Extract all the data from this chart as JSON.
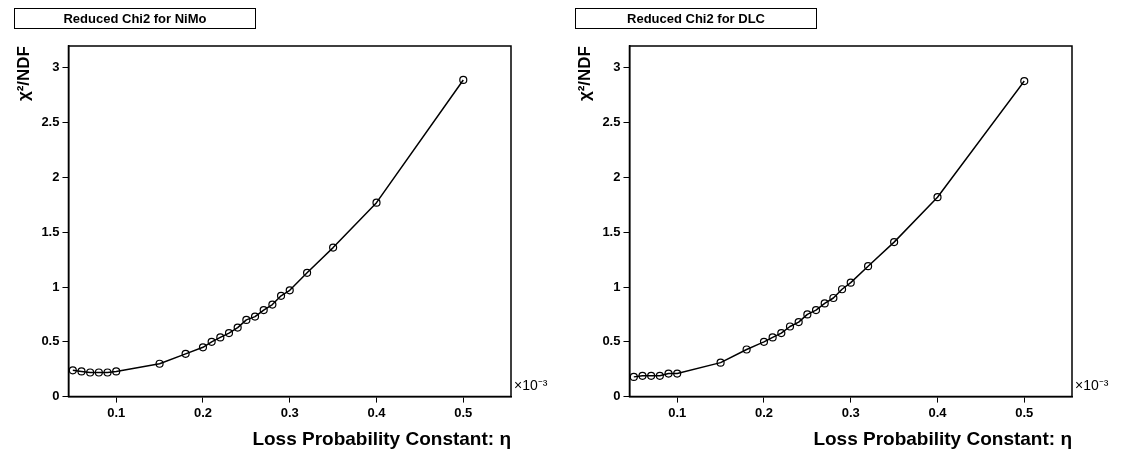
{
  "chart_data": [
    {
      "type": "line",
      "title": "Reduced Chi2 for NiMo",
      "xlabel": "Loss Probability Constant: η",
      "ylabel": "χ²/NDF",
      "annotations": [
        "×10⁻³"
      ],
      "x": [
        0.05,
        0.06,
        0.07,
        0.08,
        0.09,
        0.1,
        0.15,
        0.18,
        0.2,
        0.21,
        0.22,
        0.23,
        0.24,
        0.25,
        0.26,
        0.27,
        0.28,
        0.29,
        0.3,
        0.32,
        0.35,
        0.4,
        0.5
      ],
      "series": [
        {
          "color": "#000000",
          "values": [
            0.24,
            0.23,
            0.22,
            0.22,
            0.22,
            0.23,
            0.3,
            0.39,
            0.45,
            0.5,
            0.54,
            0.58,
            0.63,
            0.7,
            0.73,
            0.79,
            0.84,
            0.92,
            0.97,
            1.13,
            1.36,
            1.77,
            2.89
          ]
        }
      ],
      "xlim": [
        0.045,
        0.555
      ],
      "ylim": [
        0,
        3.2
      ],
      "xticks": [
        0.1,
        0.2,
        0.3,
        0.4,
        0.5
      ],
      "yticks": [
        0,
        0.5,
        1,
        1.5,
        2,
        2.5,
        3
      ],
      "marker": "circle",
      "line_style": "solid"
    },
    {
      "type": "line",
      "title": "Reduced Chi2 for DLC",
      "xlabel": "Loss Probability Constant: η",
      "ylabel": "χ²/NDF",
      "annotations": [
        "×10⁻³"
      ],
      "x": [
        0.05,
        0.06,
        0.07,
        0.08,
        0.09,
        0.1,
        0.15,
        0.18,
        0.2,
        0.21,
        0.22,
        0.23,
        0.24,
        0.25,
        0.26,
        0.27,
        0.28,
        0.29,
        0.3,
        0.32,
        0.35,
        0.4,
        0.5
      ],
      "series": [
        {
          "color": "#000000",
          "values": [
            0.18,
            0.19,
            0.19,
            0.19,
            0.21,
            0.21,
            0.31,
            0.43,
            0.5,
            0.54,
            0.58,
            0.64,
            0.68,
            0.75,
            0.79,
            0.85,
            0.9,
            0.98,
            1.04,
            1.19,
            1.41,
            1.82,
            2.88
          ]
        }
      ],
      "xlim": [
        0.045,
        0.555
      ],
      "ylim": [
        0,
        3.2
      ],
      "xticks": [
        0.1,
        0.2,
        0.3,
        0.4,
        0.5
      ],
      "yticks": [
        0,
        0.5,
        1,
        1.5,
        2,
        2.5,
        3
      ],
      "marker": "circle",
      "line_style": "solid"
    }
  ]
}
